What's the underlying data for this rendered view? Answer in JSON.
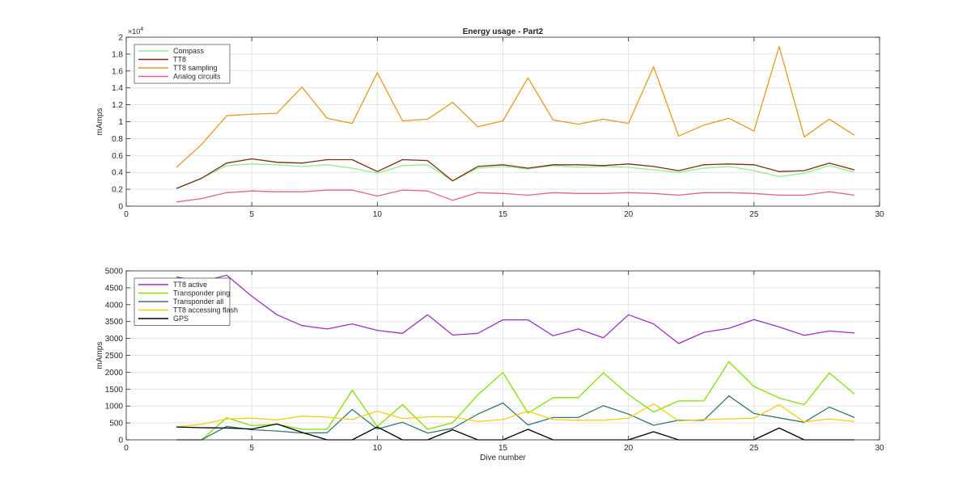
{
  "chart_data": [
    {
      "type": "line",
      "title": "Energy usage - Part2",
      "xlabel": "",
      "ylabel": "mAmps",
      "exponent_label": "×10",
      "exponent_power": "4",
      "xlim": [
        0,
        30
      ],
      "ylim": [
        0,
        20000
      ],
      "xticks": [
        0,
        5,
        10,
        15,
        20,
        25,
        30
      ],
      "yticks": [
        0,
        2000,
        4000,
        6000,
        8000,
        10000,
        12000,
        14000,
        16000,
        18000,
        20000
      ],
      "ytick_labels": [
        "0",
        "0.2",
        "0.4",
        "0.6",
        "0.8",
        "1",
        "1.2",
        "1.4",
        "1.6",
        "1.8",
        "2"
      ],
      "grid": true,
      "legend_position": "top-left",
      "x": [
        2,
        3,
        4,
        5,
        6,
        7,
        8,
        9,
        10,
        11,
        12,
        13,
        14,
        15,
        16,
        17,
        18,
        19,
        20,
        21,
        22,
        23,
        24,
        25,
        26,
        27,
        28,
        29
      ],
      "series": [
        {
          "name": "Compass",
          "color": "#90ee90",
          "values": [
            2100,
            3300,
            4800,
            5000,
            4900,
            4700,
            4900,
            4500,
            3900,
            4800,
            4900,
            3000,
            4500,
            4700,
            4400,
            4800,
            4600,
            4700,
            4600,
            4300,
            4000,
            4500,
            4700,
            4200,
            3500,
            3900,
            4800,
            4000
          ]
        },
        {
          "name": "TT8",
          "color": "#7b2e0c",
          "values": [
            2100,
            3300,
            5100,
            5600,
            5200,
            5100,
            5500,
            5500,
            4100,
            5500,
            5400,
            3000,
            4700,
            4900,
            4500,
            4900,
            4900,
            4800,
            5000,
            4700,
            4200,
            4900,
            5000,
            4900,
            4100,
            4200,
            5100,
            4300
          ]
        },
        {
          "name": "TT8 sampling",
          "color": "#e69a1c",
          "values": [
            4600,
            7300,
            10700,
            10900,
            11000,
            14100,
            10400,
            9800,
            15800,
            10100,
            10300,
            12300,
            9400,
            10100,
            15200,
            10200,
            9700,
            10300,
            9800,
            16500,
            8300,
            9600,
            10400,
            8900,
            18900,
            8200,
            10300,
            8400
          ]
        },
        {
          "name": "Analog circuits",
          "color": "#e0609e",
          "values": [
            500,
            900,
            1600,
            1800,
            1700,
            1700,
            1900,
            1900,
            1200,
            1900,
            1800,
            700,
            1600,
            1500,
            1300,
            1600,
            1500,
            1500,
            1600,
            1500,
            1300,
            1600,
            1600,
            1500,
            1300,
            1300,
            1700,
            1300
          ]
        }
      ]
    },
    {
      "type": "line",
      "title": "",
      "xlabel": "Dive number",
      "ylabel": "mAmps",
      "xlim": [
        0,
        30
      ],
      "ylim": [
        0,
        5000
      ],
      "xticks": [
        0,
        5,
        10,
        15,
        20,
        25,
        30
      ],
      "yticks": [
        0,
        500,
        1000,
        1500,
        2000,
        2500,
        3000,
        3500,
        4000,
        4500,
        5000
      ],
      "ytick_labels": [
        "0",
        "500",
        "1000",
        "1500",
        "2000",
        "2500",
        "3000",
        "3500",
        "4000",
        "4500",
        "5000"
      ],
      "grid": true,
      "legend_position": "top-left",
      "x": [
        2,
        3,
        4,
        5,
        6,
        7,
        8,
        9,
        10,
        11,
        12,
        13,
        14,
        15,
        16,
        17,
        18,
        19,
        20,
        21,
        22,
        23,
        24,
        25,
        26,
        27,
        28,
        29
      ],
      "series": [
        {
          "name": "TT8 active",
          "color": "#9b30c2",
          "values": [
            4820,
            4680,
            4870,
            4250,
            3700,
            3380,
            3280,
            3430,
            3240,
            3150,
            3700,
            3100,
            3150,
            3550,
            3550,
            3080,
            3280,
            3020,
            3700,
            3430,
            2850,
            3180,
            3300,
            3560,
            3340,
            3090,
            3220,
            3160
          ]
        },
        {
          "name": "Transponder ping",
          "color": "#82e000",
          "values": [
            0,
            0,
            650,
            420,
            460,
            310,
            310,
            1470,
            390,
            1040,
            310,
            510,
            1330,
            1990,
            790,
            1250,
            1250,
            1980,
            1340,
            820,
            1150,
            1150,
            2310,
            1580,
            1240,
            1040,
            1980,
            1360
          ]
        },
        {
          "name": "Transponder all",
          "color": "#2f7a72",
          "values": [
            0,
            0,
            400,
            300,
            260,
            200,
            210,
            900,
            320,
            520,
            200,
            340,
            760,
            1090,
            440,
            660,
            660,
            1010,
            760,
            430,
            580,
            580,
            1300,
            780,
            650,
            520,
            970,
            660
          ]
        },
        {
          "name": "TT8 accessing flash",
          "color": "#f2d010",
          "values": [
            380,
            460,
            620,
            640,
            590,
            700,
            670,
            600,
            850,
            630,
            680,
            680,
            540,
            600,
            850,
            600,
            580,
            580,
            640,
            1070,
            560,
            600,
            620,
            640,
            1040,
            530,
            620,
            540
          ]
        },
        {
          "name": "GPS",
          "color": "#000000",
          "values": [
            380,
            360,
            350,
            320,
            470,
            220,
            0,
            0,
            380,
            0,
            0,
            300,
            0,
            0,
            310,
            0,
            0,
            0,
            0,
            240,
            0,
            0,
            0,
            0,
            350,
            0,
            0,
            0
          ]
        }
      ]
    }
  ]
}
